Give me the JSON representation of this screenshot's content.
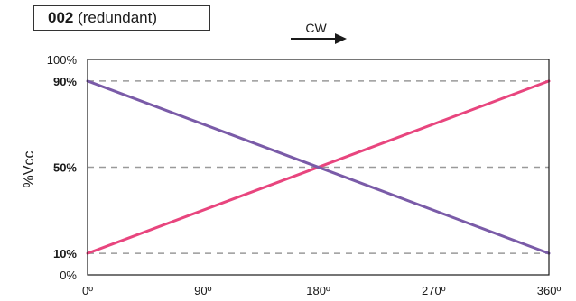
{
  "title": {
    "code": "002",
    "suffix": "(redundant)"
  },
  "direction_label": "CW",
  "chart_data": {
    "type": "line",
    "ylabel": "%Vcc",
    "xlim": [
      0,
      360
    ],
    "ylim": [
      0,
      100
    ],
    "x_ticks": [
      {
        "value": 0,
        "label": "0º"
      },
      {
        "value": 90,
        "label": "90º"
      },
      {
        "value": 180,
        "label": "180º"
      },
      {
        "value": 270,
        "label": "270º"
      },
      {
        "value": 360,
        "label": "360º"
      }
    ],
    "y_ticks": [
      {
        "value": 0,
        "label": "0%",
        "bold": false,
        "dashed": false
      },
      {
        "value": 10,
        "label": "10%",
        "bold": true,
        "dashed": true
      },
      {
        "value": 50,
        "label": "50%",
        "bold": true,
        "dashed": true
      },
      {
        "value": 90,
        "label": "90%",
        "bold": true,
        "dashed": true
      },
      {
        "value": 100,
        "label": "100%",
        "bold": false,
        "dashed": false
      }
    ],
    "series": [
      {
        "color": "#e8457e",
        "x": [
          0,
          360
        ],
        "y": [
          10,
          90
        ]
      },
      {
        "color": "#7a5ba8",
        "x": [
          0,
          360
        ],
        "y": [
          90,
          10
        ]
      }
    ],
    "grid": "dashed horizontal at 10%, 50%, 90%"
  }
}
